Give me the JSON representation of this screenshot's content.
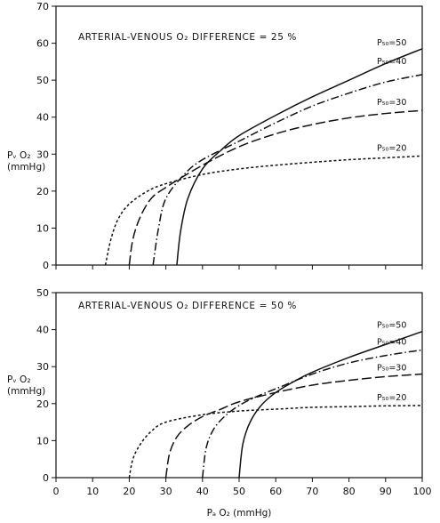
{
  "chart_data": [
    {
      "type": "line",
      "annotation": "ARTERIAL-VENOUS O₂ DIFFERENCE = 25 %",
      "ylabel": [
        "Pᵥ O₂",
        "(mmHg)"
      ],
      "xlim": [
        0,
        100
      ],
      "ylim": [
        0,
        70
      ],
      "yticks": [
        0,
        10,
        20,
        30,
        40,
        50,
        60,
        70
      ],
      "series": [
        {
          "name": "P₅₀=50",
          "style": "solid",
          "x": [
            33,
            34,
            36,
            40,
            45,
            50,
            60,
            70,
            80,
            90,
            100
          ],
          "y": [
            0,
            9,
            18,
            26,
            31,
            35,
            40.5,
            45.5,
            50,
            54.5,
            58.5
          ]
        },
        {
          "name": "P₅₀=40",
          "style": "dashdot",
          "x": [
            26.5,
            28,
            30,
            35,
            40,
            50,
            60,
            70,
            80,
            90,
            100
          ],
          "y": [
            0,
            10,
            18,
            24.5,
            28.5,
            33.5,
            38.5,
            43,
            46.5,
            49.5,
            51.5
          ]
        },
        {
          "name": "P₅₀=30",
          "style": "longdash",
          "x": [
            20,
            21,
            23,
            26,
            30,
            40,
            50,
            60,
            70,
            80,
            90,
            100
          ],
          "y": [
            0,
            7,
            13,
            18,
            21,
            27,
            32,
            35.5,
            38,
            39.8,
            41,
            41.8
          ]
        },
        {
          "name": "P₅₀=20",
          "style": "dotted",
          "x": [
            13.5,
            15,
            17,
            20,
            25,
            30,
            40,
            50,
            60,
            70,
            80,
            90,
            100
          ],
          "y": [
            0,
            7,
            12.5,
            16.5,
            20,
            22,
            24.5,
            26,
            27,
            27.8,
            28.5,
            29,
            29.5
          ]
        }
      ]
    },
    {
      "type": "line",
      "annotation": "ARTERIAL-VENOUS O₂ DIFFERENCE = 50 %",
      "ylabel": [
        "Pᵥ O₂",
        "(mmHg)"
      ],
      "xlabel": "Pₐ O₂ (mmHg)",
      "xlim": [
        0,
        100
      ],
      "ylim": [
        0,
        50
      ],
      "xticks": [
        0,
        10,
        20,
        30,
        40,
        50,
        60,
        70,
        80,
        90,
        100
      ],
      "yticks": [
        0,
        10,
        20,
        30,
        40,
        50
      ],
      "series": [
        {
          "name": "P₅₀=50",
          "style": "solid",
          "x": [
            50,
            51,
            53,
            56,
            60,
            65,
            70,
            80,
            90,
            100
          ],
          "y": [
            0,
            9,
            15,
            19.5,
            23,
            26,
            28.5,
            32.5,
            36,
            39.5
          ]
        },
        {
          "name": "P₅₀=40",
          "style": "dashdot",
          "x": [
            40,
            41,
            43,
            46,
            50,
            55,
            60,
            70,
            80,
            90,
            100
          ],
          "y": [
            0,
            8,
            13,
            16.5,
            19.5,
            22,
            24,
            28,
            31,
            33,
            34.5
          ]
        },
        {
          "name": "P₅₀=30",
          "style": "longdash",
          "x": [
            30,
            31,
            33,
            36,
            40,
            45,
            50,
            60,
            70,
            80,
            90,
            100
          ],
          "y": [
            0,
            6.5,
            11,
            14,
            16.5,
            18.5,
            20.5,
            23,
            25,
            26.3,
            27.3,
            28
          ]
        },
        {
          "name": "P₅₀=20",
          "style": "dotted",
          "x": [
            20,
            21,
            23,
            26,
            30,
            40,
            50,
            60,
            70,
            80,
            90,
            100
          ],
          "y": [
            0,
            5,
            9,
            12.5,
            15,
            17,
            18,
            18.5,
            19,
            19.2,
            19.4,
            19.5
          ]
        }
      ]
    }
  ]
}
